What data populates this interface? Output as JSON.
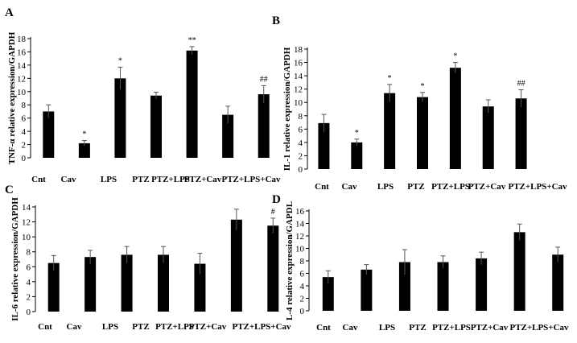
{
  "chart_data": [
    {
      "panel": "A",
      "type": "bar",
      "ylabel": "TNF-α relative expression/GAPDH",
      "ylim": [
        0,
        18
      ],
      "yticks": [
        0,
        2,
        4,
        6,
        8,
        10,
        12,
        14,
        16,
        18
      ],
      "categories": [
        "Cnt",
        "Cav",
        "LPS",
        "PTZ",
        "PTZ+LPS",
        "PTZ+Cav",
        "PTZ+LPS+Cav"
      ],
      "values": [
        7.0,
        2.2,
        12.0,
        9.4,
        16.2,
        6.5,
        9.6
      ],
      "errors": [
        1.0,
        0.4,
        1.7,
        0.5,
        0.6,
        1.3,
        1.3
      ],
      "annotations": [
        "",
        "*",
        "*",
        "",
        "**",
        "",
        "##"
      ]
    },
    {
      "panel": "B",
      "type": "bar",
      "ylabel": "IL-1 relative expression/GAPDH",
      "ylim": [
        0,
        18
      ],
      "yticks": [
        0,
        2,
        4,
        6,
        8,
        10,
        12,
        14,
        16,
        18
      ],
      "categories": [
        "Cnt",
        "Cav",
        "LPS",
        "PTZ",
        "PTZ+LPS",
        "PTZ+Cav",
        "PTZ+LPS+Cav"
      ],
      "values": [
        6.9,
        4.0,
        11.4,
        10.8,
        15.2,
        9.4,
        10.6
      ],
      "errors": [
        1.3,
        0.5,
        1.3,
        0.7,
        0.8,
        1.0,
        1.3
      ],
      "annotations": [
        "",
        "*",
        "*",
        "*",
        "*",
        "",
        "##"
      ]
    },
    {
      "panel": "C",
      "type": "bar",
      "ylabel": "IL-6 relative expression/GAPDH",
      "ylim": [
        0,
        14
      ],
      "yticks": [
        0,
        2,
        4,
        6,
        8,
        10,
        12,
        14
      ],
      "categories": [
        "Cnt",
        "Cav",
        "LPS",
        "PTZ",
        "PTZ+LPS",
        "PTZ+Cav",
        "PTZ+LPS+Cav"
      ],
      "values": [
        6.5,
        7.3,
        7.6,
        7.6,
        6.4,
        12.3,
        11.5
      ],
      "errors": [
        1.0,
        0.9,
        1.1,
        1.1,
        1.4,
        1.4,
        1.0
      ],
      "annotations": [
        "",
        "",
        "",
        "",
        "",
        "",
        "#"
      ]
    },
    {
      "panel": "D",
      "type": "bar",
      "ylabel": "L-4 relative expression/GAPDL",
      "ylim": [
        0,
        16
      ],
      "yticks": [
        0,
        2,
        4,
        6,
        8,
        10,
        12,
        14,
        16
      ],
      "categories": [
        "Cnt",
        "Cav",
        "LPS",
        "PTZ",
        "PTZ+LPS",
        "PTZ+Cav",
        "PTZ+LPS+Cav"
      ],
      "values": [
        5.4,
        6.6,
        7.8,
        7.8,
        8.4,
        12.6,
        9.0
      ],
      "errors": [
        1.0,
        0.8,
        2.0,
        1.0,
        1.0,
        1.3,
        1.2
      ],
      "annotations": [
        "",
        "",
        "",
        "",
        "",
        "",
        ""
      ]
    }
  ]
}
